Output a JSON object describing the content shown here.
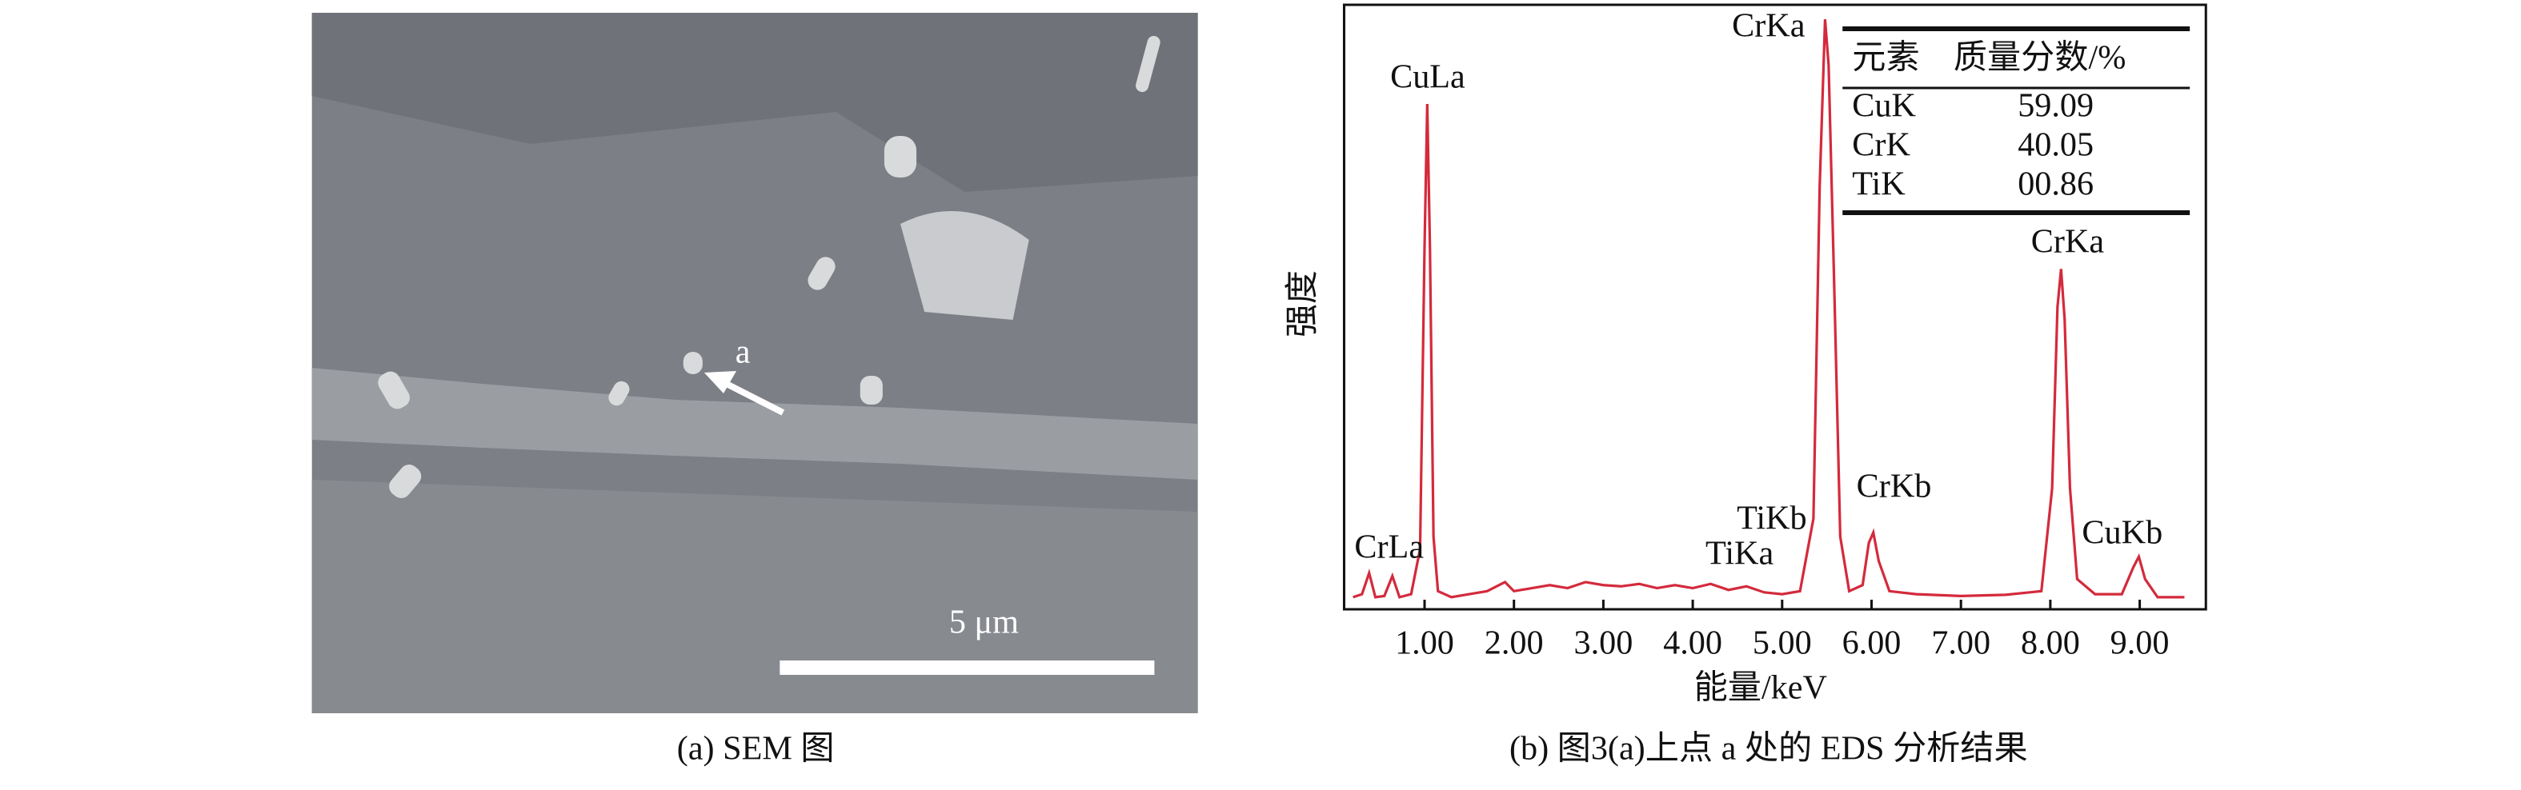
{
  "panel_a": {
    "caption": "(a) SEM 图",
    "scale_bar": "5 μm",
    "marker": "a"
  },
  "panel_b": {
    "caption": "(b) 图3(a)上点 a 处的 EDS 分析结果"
  },
  "chart_data": {
    "type": "line",
    "x_label": "能量/keV",
    "y_label": "强度",
    "xlim": [
      0.1,
      9.74
    ],
    "ylim": [
      0,
      100
    ],
    "xticks": [
      {
        "value": 1,
        "label": "1.00"
      },
      {
        "value": 2,
        "label": "2.00"
      },
      {
        "value": 3,
        "label": "3.00"
      },
      {
        "value": 4,
        "label": "4.00"
      },
      {
        "value": 5,
        "label": "5.00"
      },
      {
        "value": 6,
        "label": "6.00"
      },
      {
        "value": 7,
        "label": "7.00"
      },
      {
        "value": 8,
        "label": "8.00"
      },
      {
        "value": 9,
        "label": "9.00"
      }
    ],
    "x": [
      0.2,
      0.3,
      0.38,
      0.45,
      0.55,
      0.64,
      0.72,
      0.85,
      0.95,
      1.0,
      1.03,
      1.06,
      1.1,
      1.15,
      1.3,
      1.5,
      1.7,
      1.9,
      2.0,
      2.2,
      2.4,
      2.6,
      2.8,
      3.0,
      3.2,
      3.4,
      3.6,
      3.8,
      4.0,
      4.2,
      4.4,
      4.6,
      4.8,
      5.0,
      5.2,
      5.35,
      5.42,
      5.48,
      5.52,
      5.58,
      5.65,
      5.75,
      5.9,
      5.97,
      6.02,
      6.08,
      6.2,
      6.5,
      7.0,
      7.5,
      7.9,
      8.02,
      8.08,
      8.12,
      8.16,
      8.22,
      8.3,
      8.5,
      8.8,
      8.93,
      8.99,
      9.06,
      9.2,
      9.5
    ],
    "series": [
      {
        "color": "#d42a3c",
        "values": [
          2,
          2.5,
          6,
          2,
          2.2,
          5.5,
          2,
          2.5,
          10,
          60,
          83.6,
          60,
          12,
          3,
          2,
          2.5,
          3,
          4.5,
          3,
          3.5,
          4,
          3.5,
          4.5,
          4,
          3.8,
          4.2,
          3.5,
          4,
          3.5,
          4.2,
          3.2,
          3.8,
          2.8,
          2.5,
          3,
          15,
          70,
          97.6,
          90,
          55,
          12,
          3,
          4,
          11,
          12.7,
          8,
          3,
          2.5,
          2.2,
          2.4,
          3,
          20,
          50,
          56.3,
          48,
          20,
          5,
          2.5,
          2.5,
          7,
          8.7,
          5,
          2,
          2
        ]
      }
    ],
    "annotations": [
      "CrLa",
      "CuLa",
      "CrKa",
      "TiKb",
      "TiKa",
      "CrKb",
      "CrKa",
      "CuKb"
    ],
    "table": {
      "header": [
        "元素",
        "质量分数/%"
      ],
      "rows": [
        [
          "CuK",
          "59.09"
        ],
        [
          "CrK",
          "40.05"
        ],
        [
          "TiK",
          "00.86"
        ]
      ]
    }
  }
}
